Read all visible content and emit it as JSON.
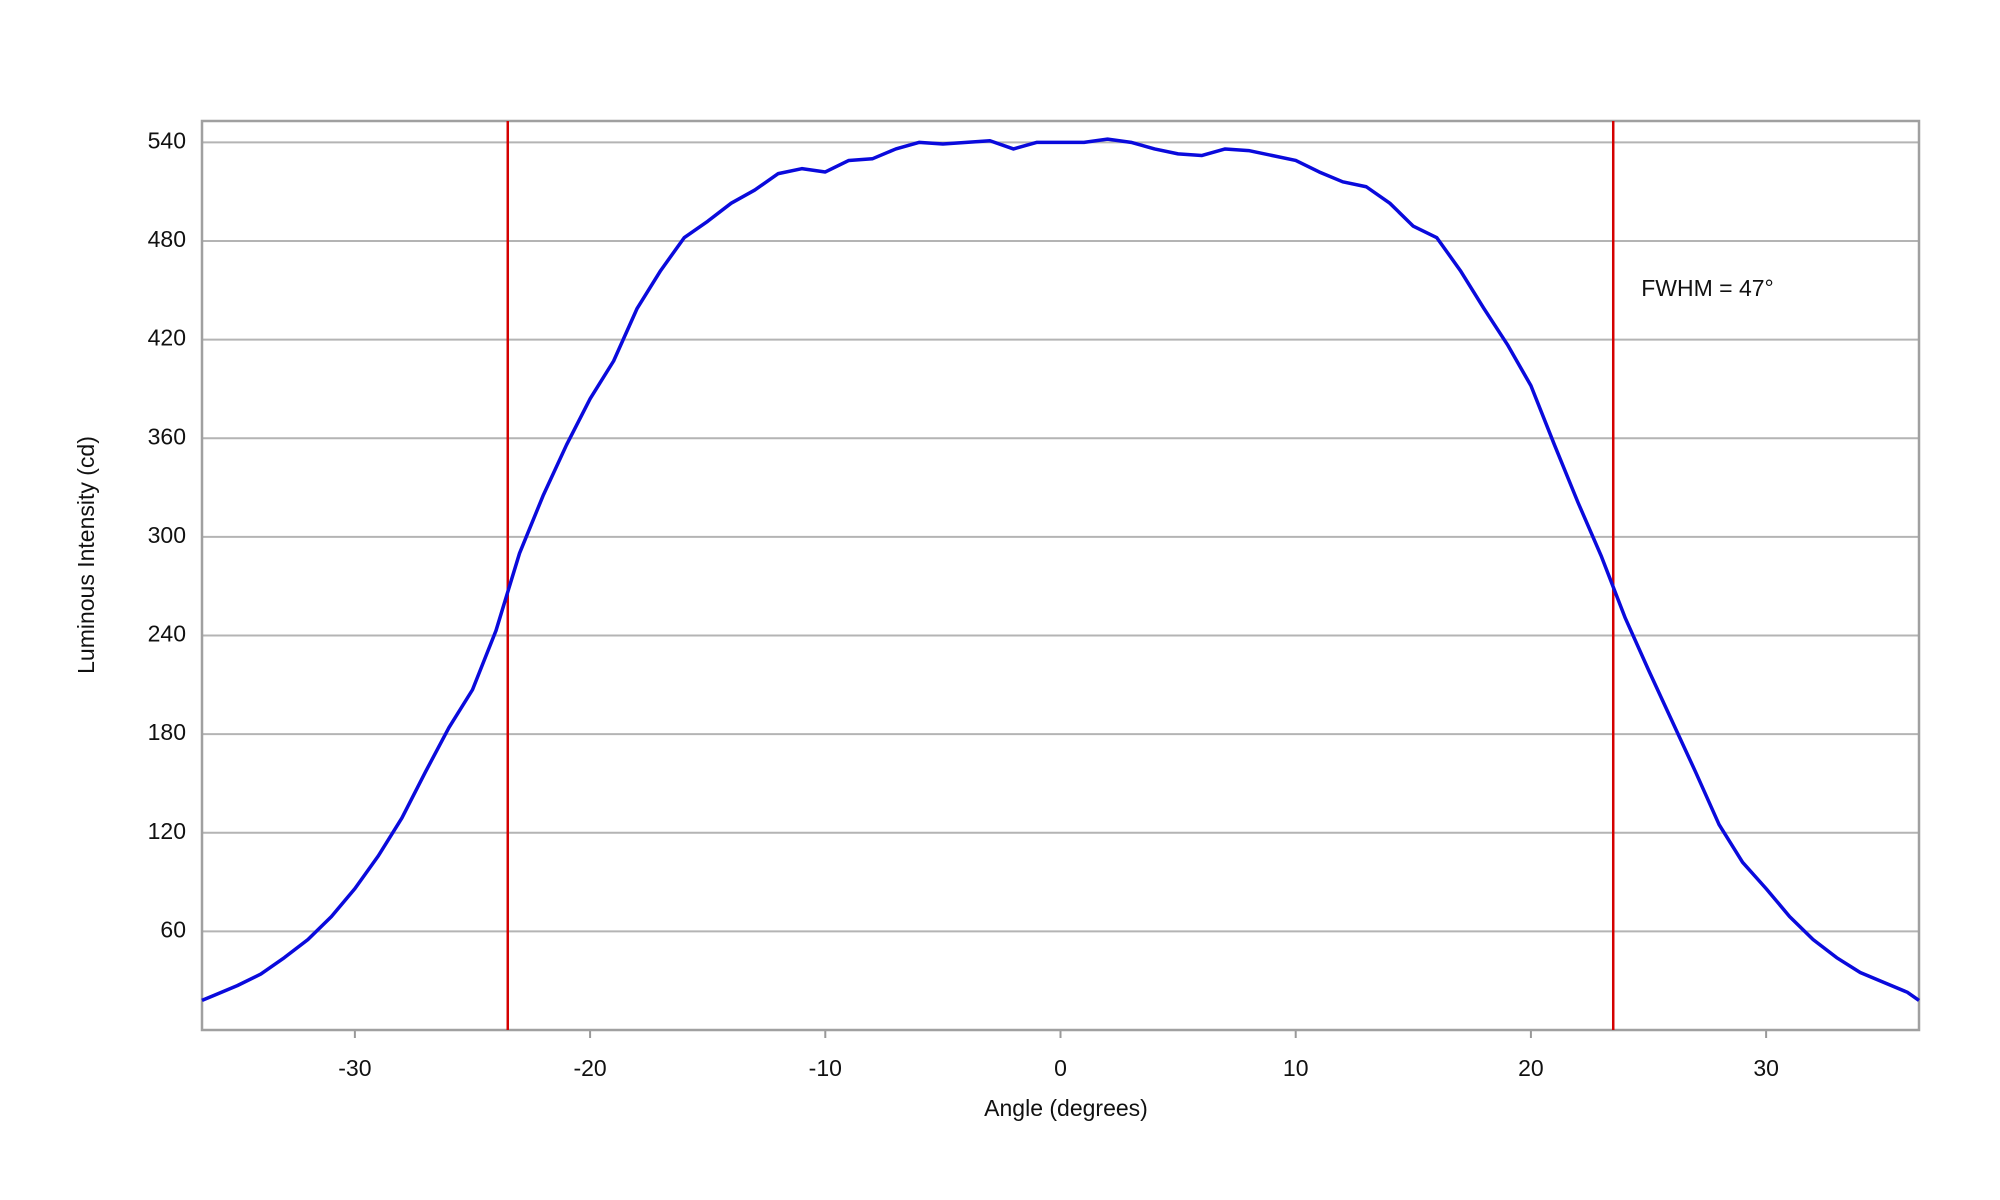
{
  "chart_data": {
    "type": "line",
    "xlabel": "Angle (degrees)",
    "ylabel": "Luminous Intensity (cd)",
    "annotation": "FWHM = 47°",
    "x": [
      -36.5,
      -36,
      -35,
      -34,
      -33,
      -32,
      -31,
      -30,
      -29,
      -28,
      -27,
      -26,
      -25,
      -24,
      -23,
      -22,
      -21,
      -20,
      -19,
      -18,
      -17,
      -16,
      -15,
      -14,
      -13,
      -12,
      -11,
      -10,
      -9,
      -8,
      -7,
      -6,
      -5,
      -4,
      -3,
      -2,
      -1,
      0,
      1,
      2,
      3,
      4,
      5,
      6,
      7,
      8,
      9,
      10,
      11,
      12,
      13,
      14,
      15,
      16,
      17,
      18,
      19,
      20,
      21,
      22,
      23,
      24,
      25,
      26,
      27,
      28,
      29,
      30,
      31,
      32,
      33,
      34,
      35,
      36,
      36.5
    ],
    "series": [
      {
        "color": "#0a0adc",
        "values": [
          18,
          21,
          27,
          34,
          44,
          55,
          69,
          86,
          106,
          129,
          157,
          184,
          207,
          243,
          290,
          325,
          356,
          384,
          407,
          439,
          462,
          482,
          492,
          503,
          511,
          521,
          524,
          522,
          529,
          530,
          536,
          540,
          539,
          540,
          541,
          536,
          540,
          540,
          540,
          542,
          540,
          536,
          533,
          532,
          536,
          535,
          532,
          529,
          522,
          516,
          513,
          503,
          489,
          482,
          462,
          439,
          417,
          392,
          356,
          321,
          288,
          251,
          219,
          188,
          157,
          125,
          102,
          86,
          69,
          55,
          44,
          35,
          29,
          23,
          18
        ]
      }
    ],
    "vlines": [
      -23.5,
      23.5
    ],
    "vline_color": "#d40000",
    "xlim": [
      -36.5,
      36.5
    ],
    "ylim": [
      0,
      553
    ],
    "xticks": [
      -30,
      -20,
      -10,
      0,
      10,
      20,
      30
    ],
    "yticks": [
      60,
      120,
      180,
      240,
      300,
      360,
      420,
      480,
      540
    ],
    "grid": true
  }
}
